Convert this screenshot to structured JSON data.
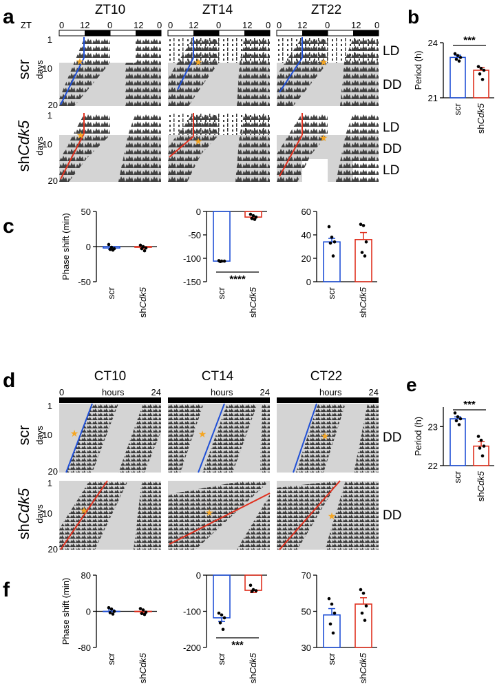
{
  "panel_letters": {
    "a": "a",
    "b": "b",
    "c": "c",
    "d": "d",
    "e": "e",
    "f": "f"
  },
  "colors": {
    "scr": "#1f4fd6",
    "shCdk5": "#e0301e",
    "star": "#f5a623",
    "act": "#3a3a3a",
    "dd": "#d4d4d4",
    "light": "#ffffff"
  },
  "actograms_zt": {
    "axis_prefix": "ZT",
    "ticks": [
      "0",
      "12",
      "0",
      "12",
      "0"
    ],
    "titles": [
      "ZT10",
      "ZT14",
      "ZT22"
    ],
    "ylabel": "days",
    "yticks": [
      "1",
      "10",
      "20"
    ],
    "rows": [
      {
        "group": "scr",
        "conditions": [
          "LD",
          "DD"
        ]
      },
      {
        "group": "shCdk5",
        "conditions": [
          "LD",
          "DD",
          "LD"
        ]
      }
    ]
  },
  "actograms_ct": {
    "axis_start": "0",
    "axis_mid": "hours",
    "axis_end": "24",
    "titles": [
      "CT10",
      "CT14",
      "CT22"
    ],
    "ylabel": "days",
    "yticks": [
      "1",
      "10",
      "20"
    ],
    "rows": [
      {
        "group": "scr",
        "conditions": [
          "DD"
        ]
      },
      {
        "group": "shCdk5",
        "conditions": [
          "DD"
        ]
      }
    ]
  },
  "group_prefix_sh": "sh",
  "group_italic": "Cdk5",
  "chart_data": [
    {
      "panel": "b",
      "type": "bar",
      "ylabel": "Period (h)",
      "ylim": [
        21,
        24
      ],
      "yticks": [
        "21",
        "24"
      ],
      "categories": [
        "scr",
        "shCdk5"
      ],
      "values": [
        23.2,
        22.5
      ],
      "sem": [
        0.12,
        0.15
      ],
      "points": [
        [
          23.4,
          23.3,
          23.2,
          23.1,
          23.0
        ],
        [
          22.7,
          22.6,
          22.5,
          22.3,
          22.0
        ]
      ],
      "significance": "***"
    },
    {
      "panel": "c1",
      "type": "bar",
      "ylabel": "Phase shift (min)",
      "ylim": [
        -50,
        50
      ],
      "yticks": [
        "50",
        "0",
        "-50"
      ],
      "categories": [
        "scr",
        "shCdk5"
      ],
      "values": [
        -2,
        -1
      ],
      "sem": [
        2,
        2
      ],
      "points": [
        [
          3,
          -1,
          -3,
          -4,
          -5
        ],
        [
          2,
          0,
          -2,
          -3,
          -6
        ]
      ]
    },
    {
      "panel": "c2",
      "type": "bar",
      "ylabel": "",
      "ylim": [
        -150,
        0
      ],
      "yticks": [
        "0",
        "-50",
        "-100",
        "-150"
      ],
      "categories": [
        "scr",
        "shCdk5"
      ],
      "values": [
        -106,
        -12
      ],
      "sem": [
        1.5,
        2.5
      ],
      "points": [
        [
          -105,
          -106,
          -106,
          -107
        ],
        [
          -6,
          -9,
          -12,
          -15,
          -17
        ]
      ],
      "significance": "****"
    },
    {
      "panel": "c3",
      "type": "bar",
      "ylabel": "",
      "ylim": [
        0,
        60
      ],
      "yticks": [
        "0",
        "20",
        "40",
        "60"
      ],
      "categories": [
        "scr",
        "shCdk5"
      ],
      "values": [
        34,
        36
      ],
      "sem": [
        3,
        6
      ],
      "points": [
        [
          47,
          38,
          34,
          33,
          22
        ],
        [
          49,
          48,
          34,
          25,
          22
        ]
      ]
    },
    {
      "panel": "e",
      "type": "bar",
      "ylabel": "Period (h)",
      "ylim": [
        22,
        23.5
      ],
      "yticks": [
        "22",
        "23"
      ],
      "categories": [
        "scr",
        "shCdk5"
      ],
      "values": [
        23.2,
        22.5
      ],
      "sem": [
        0.05,
        0.12
      ],
      "points": [
        [
          23.35,
          23.25,
          23.2,
          23.15,
          23.05
        ],
        [
          22.75,
          22.65,
          22.5,
          22.45,
          22.25
        ]
      ],
      "significance": "***"
    },
    {
      "panel": "f1",
      "type": "bar",
      "ylabel": "Phase shift (min)",
      "ylim": [
        -80,
        80
      ],
      "yticks": [
        "80",
        "0",
        "-80"
      ],
      "categories": [
        "scr",
        "shCdk5"
      ],
      "values": [
        0,
        -1
      ],
      "sem": [
        3,
        3
      ],
      "points": [
        [
          8,
          5,
          0,
          -3,
          -6
        ],
        [
          6,
          3,
          -2,
          -5,
          -7
        ]
      ]
    },
    {
      "panel": "f2",
      "type": "bar",
      "ylabel": "",
      "ylim": [
        -200,
        0
      ],
      "yticks": [
        "0",
        "-100",
        "-200"
      ],
      "categories": [
        "scr",
        "shCdk5"
      ],
      "values": [
        -118,
        -42
      ],
      "sem": [
        10,
        6
      ],
      "points": [
        [
          -105,
          -110,
          -118,
          -132,
          -150
        ],
        [
          -28,
          -40,
          -43,
          -45
        ]
      ],
      "significance": "***"
    },
    {
      "panel": "f3",
      "type": "bar",
      "ylabel": "",
      "ylim": [
        30,
        70
      ],
      "yticks": [
        "30",
        "50",
        "70"
      ],
      "categories": [
        "scr",
        "shCdk5"
      ],
      "values": [
        48,
        54
      ],
      "sem": [
        3.5,
        3.5
      ],
      "points": [
        [
          57,
          54,
          49,
          43,
          38
        ],
        [
          62,
          60,
          53,
          49,
          45
        ]
      ]
    }
  ]
}
